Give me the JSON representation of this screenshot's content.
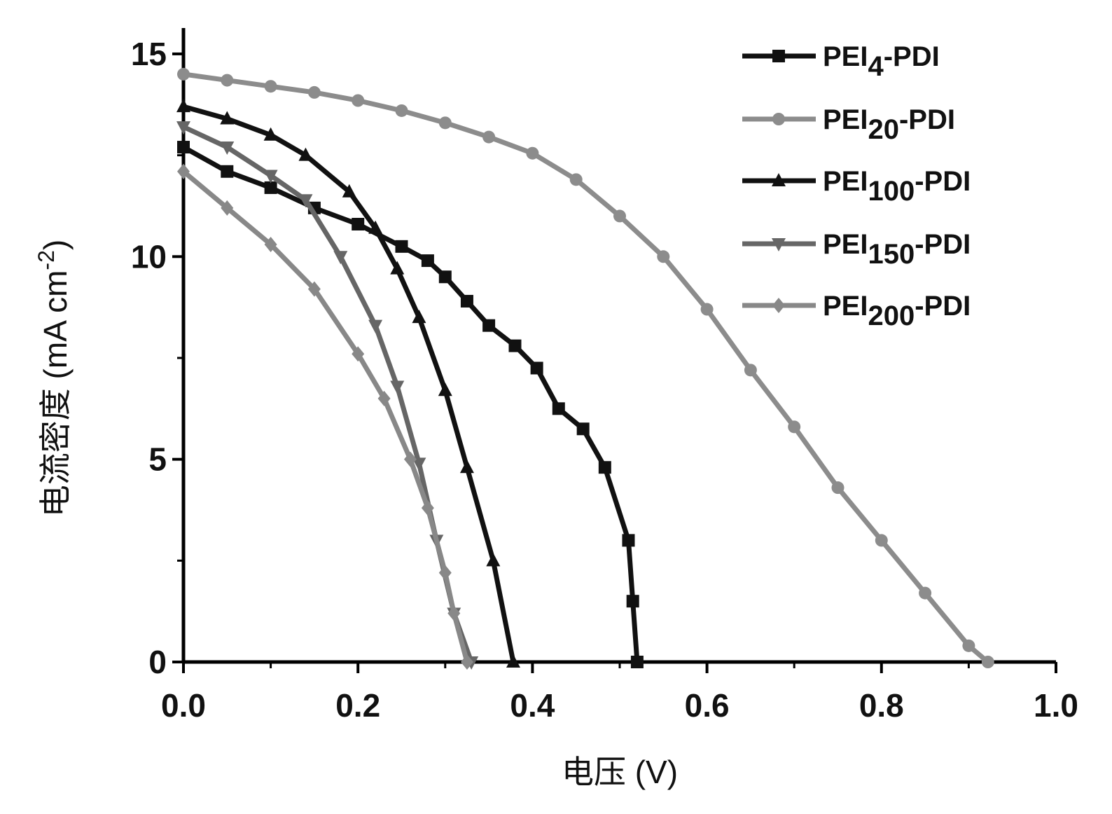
{
  "chart_data": {
    "type": "line",
    "title": "",
    "xlabel": "电压 (V)",
    "ylabel_main": "电流密度 (mA cm",
    "ylabel_sup": "-2",
    "ylabel_end": ")",
    "xlim": [
      0,
      1.0
    ],
    "ylim": [
      0,
      15.5
    ],
    "xticks": [
      0.0,
      0.2,
      0.4,
      0.6,
      0.8,
      1.0
    ],
    "xtick_labels": [
      "0.0",
      "0.2",
      "0.4",
      "0.6",
      "0.8",
      "1.0"
    ],
    "yticks": [
      0,
      5,
      10,
      15
    ],
    "ytick_labels": [
      "0",
      "5",
      "10",
      "15"
    ],
    "grid": false,
    "legend_position": "top-right",
    "series": [
      {
        "name": "PEI4-PDI",
        "base": "PEI",
        "sub": "4",
        "suffix": "-PDI",
        "color": "#111111",
        "marker": "square",
        "x": [
          0,
          0.05,
          0.1,
          0.15,
          0.2,
          0.25,
          0.28,
          0.3,
          0.325,
          0.35,
          0.38,
          0.405,
          0.43,
          0.458,
          0.483,
          0.51,
          0.515,
          0.52
        ],
        "y": [
          12.7,
          12.1,
          11.7,
          11.2,
          10.8,
          10.25,
          9.9,
          9.5,
          8.9,
          8.3,
          7.8,
          7.25,
          6.25,
          5.75,
          4.8,
          3.0,
          1.5,
          0
        ]
      },
      {
        "name": "PEI20-PDI",
        "base": "PEI",
        "sub": "20",
        "suffix": "-PDI",
        "color": "#8c8c8c",
        "marker": "circle",
        "x": [
          0,
          0.05,
          0.1,
          0.15,
          0.2,
          0.25,
          0.3,
          0.35,
          0.4,
          0.45,
          0.5,
          0.55,
          0.6,
          0.65,
          0.7,
          0.75,
          0.8,
          0.85,
          0.9,
          0.922
        ],
        "y": [
          14.5,
          14.35,
          14.2,
          14.05,
          13.85,
          13.6,
          13.3,
          12.95,
          12.55,
          11.9,
          11.0,
          10.0,
          8.7,
          7.2,
          5.8,
          4.3,
          3.0,
          1.7,
          0.4,
          0
        ]
      },
      {
        "name": "PEI100-PDI",
        "base": "PEI",
        "sub": "100",
        "suffix": "-PDI",
        "color": "#111111",
        "marker": "triangle-up",
        "x": [
          0,
          0.05,
          0.1,
          0.14,
          0.19,
          0.22,
          0.245,
          0.27,
          0.3,
          0.325,
          0.355,
          0.378
        ],
        "y": [
          13.7,
          13.4,
          13.0,
          12.5,
          11.6,
          10.7,
          9.7,
          8.5,
          6.7,
          4.8,
          2.5,
          0
        ]
      },
      {
        "name": "PEI150-PDI",
        "base": "PEI",
        "sub": "150",
        "suffix": "-PDI",
        "color": "#666666",
        "marker": "triangle-down",
        "x": [
          0,
          0.05,
          0.1,
          0.14,
          0.18,
          0.22,
          0.245,
          0.27,
          0.29,
          0.31,
          0.33
        ],
        "y": [
          13.2,
          12.7,
          12.0,
          11.4,
          10.0,
          8.3,
          6.8,
          4.9,
          3.0,
          1.2,
          0
        ]
      },
      {
        "name": "PEI200-PDI",
        "base": "PEI",
        "sub": "200",
        "suffix": "-PDI",
        "color": "#888888",
        "marker": "diamond",
        "x": [
          0,
          0.05,
          0.1,
          0.15,
          0.2,
          0.23,
          0.26,
          0.28,
          0.3,
          0.31,
          0.325
        ],
        "y": [
          12.1,
          11.2,
          10.3,
          9.2,
          7.6,
          6.5,
          5.0,
          3.8,
          2.2,
          1.2,
          0
        ]
      }
    ]
  }
}
